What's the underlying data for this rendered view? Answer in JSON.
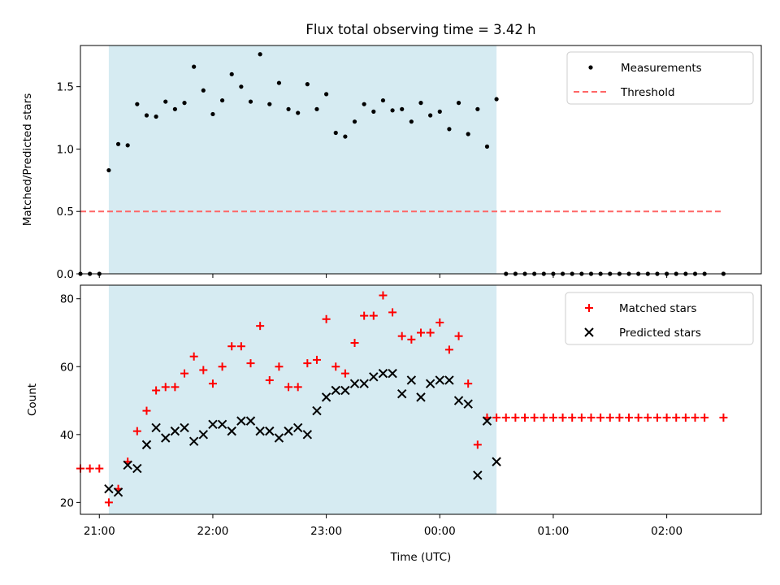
{
  "chart_data": [
    {
      "type": "scatter",
      "title": "Flux total observing time = 3.42 h",
      "xlabel": "",
      "ylabel": "Matched/Predicted stars",
      "ylim": [
        0,
        1.83
      ],
      "yticks": [
        0.0,
        0.5,
        1.0,
        1.5
      ],
      "ytick_labels": [
        "0.0",
        "0.5",
        "1.0",
        "1.5"
      ],
      "xlim": [
        "20:50",
        "02:50"
      ],
      "shaded_interval": [
        "21:05",
        "00:30"
      ],
      "shade_color": "#add8e6",
      "legend_position": "upper right",
      "legend": [
        {
          "name": "Measurements",
          "style": "dot",
          "color": "#000000"
        },
        {
          "name": "Threshold",
          "style": "dashed",
          "color": "#ff6666"
        }
      ],
      "threshold": {
        "value": 0.5,
        "x_start": "20:50",
        "x_end": "02:30"
      },
      "series": [
        {
          "name": "Measurements",
          "color": "#000000",
          "x": [
            "20:50",
            "20:55",
            "21:00",
            "21:05",
            "21:10",
            "21:15",
            "21:20",
            "21:25",
            "21:30",
            "21:35",
            "21:40",
            "21:45",
            "21:50",
            "21:55",
            "22:00",
            "22:05",
            "22:10",
            "22:15",
            "22:20",
            "22:25",
            "22:30",
            "22:35",
            "22:40",
            "22:45",
            "22:50",
            "22:55",
            "23:00",
            "23:05",
            "23:10",
            "23:15",
            "23:20",
            "23:25",
            "23:30",
            "23:35",
            "23:40",
            "23:45",
            "23:50",
            "23:55",
            "00:00",
            "00:05",
            "00:10",
            "00:15",
            "00:20",
            "00:25",
            "00:30",
            "00:35",
            "00:40",
            "00:45",
            "00:50",
            "00:55",
            "01:00",
            "01:05",
            "01:10",
            "01:15",
            "01:20",
            "01:25",
            "01:30",
            "01:35",
            "01:40",
            "01:45",
            "01:50",
            "01:55",
            "02:00",
            "02:05",
            "02:10",
            "02:15",
            "02:20",
            "02:30"
          ],
          "y": [
            0,
            0,
            0,
            0.83,
            1.04,
            1.03,
            1.36,
            1.27,
            1.26,
            1.38,
            1.32,
            1.37,
            1.66,
            1.47,
            1.28,
            1.39,
            1.6,
            1.5,
            1.38,
            1.76,
            1.36,
            1.53,
            1.32,
            1.29,
            1.52,
            1.32,
            1.44,
            1.13,
            1.1,
            1.22,
            1.36,
            1.3,
            1.39,
            1.31,
            1.32,
            1.22,
            1.37,
            1.27,
            1.3,
            1.16,
            1.37,
            1.12,
            1.32,
            1.02,
            1.4,
            0,
            0,
            0,
            0,
            0,
            0,
            0,
            0,
            0,
            0,
            0,
            0,
            0,
            0,
            0,
            0,
            0,
            0,
            0,
            0,
            0,
            0,
            0
          ]
        }
      ]
    },
    {
      "type": "scatter",
      "title": "",
      "xlabel": "Time (UTC)",
      "ylabel": "Count",
      "ylim": [
        16.5,
        84
      ],
      "yticks": [
        20,
        40,
        60,
        80
      ],
      "xlim": [
        "20:50",
        "02:50"
      ],
      "x_tick_labels": [
        "21:00",
        "22:00",
        "23:00",
        "00:00",
        "01:00",
        "02:00"
      ],
      "shaded_interval": [
        "21:05",
        "00:30"
      ],
      "shade_color": "#add8e6",
      "legend_position": "upper right",
      "legend": [
        {
          "name": "Matched stars",
          "style": "plus",
          "color": "#ff0000"
        },
        {
          "name": "Predicted stars",
          "style": "x",
          "color": "#000000"
        }
      ],
      "series": [
        {
          "name": "Matched stars",
          "marker": "plus",
          "color": "#ff0000",
          "x": [
            "20:50",
            "20:55",
            "21:00",
            "21:05",
            "21:10",
            "21:15",
            "21:20",
            "21:25",
            "21:30",
            "21:35",
            "21:40",
            "21:45",
            "21:50",
            "21:55",
            "22:00",
            "22:05",
            "22:10",
            "22:15",
            "22:20",
            "22:25",
            "22:30",
            "22:35",
            "22:40",
            "22:45",
            "22:50",
            "22:55",
            "23:00",
            "23:05",
            "23:10",
            "23:15",
            "23:20",
            "23:25",
            "23:30",
            "23:35",
            "23:40",
            "23:45",
            "23:50",
            "23:55",
            "00:00",
            "00:05",
            "00:10",
            "00:15",
            "00:20",
            "00:25",
            "00:30",
            "00:35",
            "00:40",
            "00:45",
            "00:50",
            "00:55",
            "01:00",
            "01:05",
            "01:10",
            "01:15",
            "01:20",
            "01:25",
            "01:30",
            "01:35",
            "01:40",
            "01:45",
            "01:50",
            "01:55",
            "02:00",
            "02:05",
            "02:10",
            "02:15",
            "02:20",
            "02:30"
          ],
          "y": [
            30,
            30,
            30,
            20,
            24,
            32,
            41,
            47,
            53,
            54,
            54,
            58,
            63,
            59,
            55,
            60,
            66,
            66,
            61,
            72,
            56,
            60,
            54,
            54,
            61,
            62,
            74,
            60,
            58,
            67,
            75,
            75,
            81,
            76,
            69,
            68,
            70,
            70,
            73,
            65,
            69,
            55,
            37,
            45,
            45,
            45,
            45,
            45,
            45,
            45,
            45,
            45,
            45,
            45,
            45,
            45,
            45,
            45,
            45,
            45,
            45,
            45,
            45,
            45,
            45,
            45,
            45,
            45
          ]
        },
        {
          "name": "Predicted stars",
          "marker": "x",
          "color": "#000000",
          "x": [
            "21:05",
            "21:10",
            "21:15",
            "21:20",
            "21:25",
            "21:30",
            "21:35",
            "21:40",
            "21:45",
            "21:50",
            "21:55",
            "22:00",
            "22:05",
            "22:10",
            "22:15",
            "22:20",
            "22:25",
            "22:30",
            "22:35",
            "22:40",
            "22:45",
            "22:50",
            "22:55",
            "23:00",
            "23:05",
            "23:10",
            "23:15",
            "23:20",
            "23:25",
            "23:30",
            "23:35",
            "23:40",
            "23:45",
            "23:50",
            "23:55",
            "00:00",
            "00:05",
            "00:10",
            "00:15",
            "00:20",
            "00:25",
            "00:30"
          ],
          "y": [
            24,
            23,
            31,
            30,
            37,
            42,
            39,
            41,
            42,
            38,
            40,
            43,
            43,
            41,
            44,
            44,
            41,
            41,
            39,
            41,
            42,
            40,
            47,
            51,
            53,
            53,
            55,
            55,
            57,
            58,
            58,
            52,
            56,
            51,
            55,
            56,
            56,
            50,
            49,
            28,
            44,
            32
          ]
        }
      ]
    }
  ]
}
